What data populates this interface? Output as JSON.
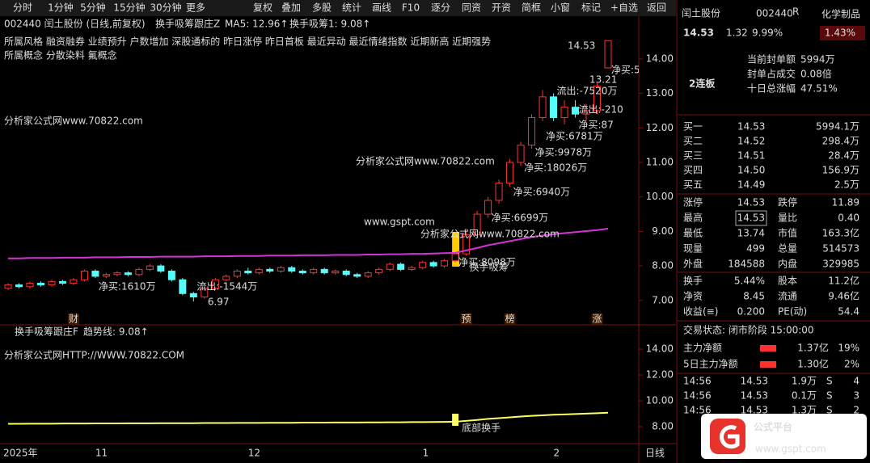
{
  "toolbar": [
    "分时",
    "1分钟",
    "5分钟",
    "15分钟",
    "30分钟",
    "更多",
    "复权",
    "叠加",
    "多股",
    "统计",
    "画线",
    "F10",
    "逐分",
    "同资",
    "开资",
    "简框",
    "小窗",
    "标记",
    "+自选",
    "返回"
  ],
  "chart_data": [
    {
      "type": "candlestick",
      "title": "002440 闰土股份 (日线,前复权)",
      "indicator": "换手吸筹跟庄Z",
      "legend": [
        "MA5: 12.96↑",
        "换手吸筹1: 9.08↑"
      ],
      "concepts": [
        "所属风格 融资融券 业绩预升 户数增加 深股通标的 昨日涨停 昨日首板 最近异动 最近情绪指数 近期新高 近期强势",
        "所属概念 分散染料 氟概念"
      ],
      "categories": [
        "2025年",
        null,
        null,
        null,
        null,
        null,
        null,
        null,
        "11",
        null,
        null,
        null,
        null,
        null,
        null,
        null,
        null,
        null,
        null,
        null,
        null,
        null,
        "12",
        null,
        null,
        null,
        null,
        null,
        null,
        null,
        null,
        null,
        null,
        null,
        null,
        null,
        null,
        null,
        "1",
        null,
        null,
        null,
        null,
        null,
        null,
        null,
        null,
        null,
        null,
        null,
        "2",
        null,
        null,
        null,
        null,
        null
      ],
      "period": "日线",
      "ohlc": [
        [
          7.35,
          7.5,
          7.3,
          7.45
        ],
        [
          7.45,
          7.5,
          7.35,
          7.4
        ],
        [
          7.4,
          7.55,
          7.35,
          7.5
        ],
        [
          7.5,
          7.55,
          7.4,
          7.45
        ],
        [
          7.45,
          7.6,
          7.4,
          7.55
        ],
        [
          7.55,
          7.6,
          7.45,
          7.5
        ],
        [
          7.5,
          7.65,
          7.45,
          7.6
        ],
        [
          7.6,
          7.9,
          7.55,
          7.85
        ],
        [
          7.85,
          7.9,
          7.65,
          7.7
        ],
        [
          7.7,
          7.8,
          7.65,
          7.75
        ],
        [
          7.75,
          7.85,
          7.7,
          7.8
        ],
        [
          7.8,
          7.85,
          7.7,
          7.75
        ],
        [
          7.75,
          7.95,
          7.7,
          7.9
        ],
        [
          7.9,
          8.05,
          7.85,
          8.0
        ],
        [
          8.0,
          8.05,
          7.8,
          7.85
        ],
        [
          7.85,
          7.9,
          7.55,
          7.6
        ],
        [
          7.6,
          7.65,
          7.15,
          7.2
        ],
        [
          7.2,
          7.25,
          6.97,
          7.1
        ],
        [
          7.1,
          7.4,
          7.05,
          7.35
        ],
        [
          7.35,
          7.65,
          7.3,
          7.6
        ],
        [
          7.6,
          7.75,
          7.55,
          7.7
        ],
        [
          7.7,
          7.9,
          7.65,
          7.85
        ],
        [
          7.85,
          7.95,
          7.75,
          7.8
        ],
        [
          7.8,
          7.95,
          7.75,
          7.9
        ],
        [
          7.9,
          7.95,
          7.8,
          7.85
        ],
        [
          7.85,
          8.0,
          7.8,
          7.95
        ],
        [
          7.95,
          8.0,
          7.8,
          7.85
        ],
        [
          7.85,
          7.9,
          7.75,
          7.8
        ],
        [
          7.8,
          7.95,
          7.75,
          7.9
        ],
        [
          7.9,
          7.95,
          7.75,
          7.8
        ],
        [
          7.8,
          7.9,
          7.75,
          7.85
        ],
        [
          7.85,
          7.9,
          7.7,
          7.75
        ],
        [
          7.75,
          7.8,
          7.65,
          7.7
        ],
        [
          7.7,
          7.85,
          7.65,
          7.8
        ],
        [
          7.8,
          7.95,
          7.75,
          7.9
        ],
        [
          7.9,
          8.1,
          7.85,
          8.05
        ],
        [
          8.05,
          8.1,
          7.85,
          7.9
        ],
        [
          7.9,
          8.0,
          7.85,
          7.95
        ],
        [
          7.95,
          8.15,
          7.9,
          8.1
        ],
        [
          8.1,
          8.15,
          7.95,
          8.0
        ],
        [
          8.0,
          8.2,
          7.95,
          8.15
        ],
        [
          8.15,
          8.4,
          8.1,
          8.35
        ],
        [
          8.35,
          9.0,
          8.3,
          8.9
        ],
        [
          8.9,
          9.6,
          8.85,
          9.5
        ],
        [
          9.5,
          10.0,
          9.4,
          9.9
        ],
        [
          9.9,
          10.5,
          9.8,
          10.4
        ],
        [
          10.4,
          11.1,
          10.3,
          11.0
        ],
        [
          11.0,
          11.6,
          10.9,
          11.5
        ],
        [
          11.5,
          12.4,
          11.4,
          12.3
        ],
        [
          12.3,
          13.1,
          12.2,
          12.9
        ],
        [
          12.9,
          13.0,
          12.2,
          12.3
        ],
        [
          12.3,
          12.8,
          12.1,
          12.6
        ],
        [
          12.6,
          12.8,
          12.3,
          12.4
        ],
        [
          12.4,
          12.7,
          12.2,
          12.5
        ],
        [
          12.5,
          13.3,
          12.4,
          13.21
        ],
        [
          13.74,
          14.53,
          13.74,
          14.53
        ]
      ],
      "lines": [
        {
          "color": "#d633d6",
          "values": [
            8.22,
            8.22,
            8.23,
            8.23,
            8.23,
            8.24,
            8.24,
            8.24,
            8.25,
            8.25,
            8.25,
            8.26,
            8.26,
            8.26,
            8.27,
            8.27,
            8.27,
            8.27,
            8.28,
            8.28,
            8.28,
            8.29,
            8.29,
            8.29,
            8.3,
            8.3,
            8.3,
            8.31,
            8.31,
            8.31,
            8.32,
            8.32,
            8.32,
            8.33,
            8.33,
            8.34,
            8.34,
            8.35,
            8.35,
            8.36,
            8.37,
            8.38,
            8.45,
            8.52,
            8.6,
            8.66,
            8.72,
            8.78,
            8.84,
            8.88,
            8.92,
            8.95,
            8.98,
            9.01,
            9.04,
            9.08
          ]
        }
      ],
      "up_color": "#ff3232",
      "down_color": "#54fcfc",
      "ylim": [
        6.34,
        14.77
      ],
      "yticks": [
        {
          "value": 14,
          "label": "14.00"
        },
        {
          "value": 13,
          "label": "13.00"
        },
        {
          "value": 12,
          "label": "12.00"
        },
        {
          "value": 11,
          "label": "11.00"
        },
        {
          "value": 10,
          "label": "10.00"
        },
        {
          "value": 9,
          "label": "9.00"
        },
        {
          "value": 8,
          "label": "8.00"
        },
        {
          "value": 7,
          "label": "7.00"
        }
      ],
      "annotations": [
        "净买:1610万",
        "流出:-1544万",
        "6.97",
        "净买:6699万",
        "净买:6940万",
        "净买:18026万",
        "净买:9978万",
        "净买:6781万",
        "净买:87",
        "流出:-7520万",
        "流出:-210",
        "13.21",
        "14.53",
        "净买:5",
        "换手吸筹",
        "净买:8098万"
      ],
      "markers": [
        "财",
        "预",
        "榜",
        "涨"
      ]
    },
    {
      "type": "line",
      "indicator": "换手吸筹跟庄F",
      "legend": "趋势线: 9.08↑",
      "color": "#ffff66",
      "values": [
        8.22,
        8.22,
        8.23,
        8.23,
        8.23,
        8.24,
        8.24,
        8.24,
        8.25,
        8.25,
        8.25,
        8.26,
        8.26,
        8.26,
        8.27,
        8.27,
        8.27,
        8.27,
        8.28,
        8.28,
        8.28,
        8.29,
        8.29,
        8.29,
        8.3,
        8.3,
        8.3,
        8.31,
        8.31,
        8.31,
        8.32,
        8.32,
        8.32,
        8.33,
        8.33,
        8.34,
        8.34,
        8.35,
        8.35,
        8.36,
        8.37,
        8.38,
        8.45,
        8.52,
        8.6,
        8.66,
        8.72,
        8.78,
        8.84,
        8.88,
        8.92,
        8.95,
        8.98,
        9.01,
        9.04,
        9.08
      ],
      "ylim": [
        6.75,
        15.38
      ],
      "yticks": [
        {
          "value": 14,
          "label": "14.00"
        },
        {
          "value": 12,
          "label": "12.00"
        },
        {
          "value": 10,
          "label": "10.00"
        },
        {
          "value": 8,
          "label": "8.00"
        }
      ],
      "annotation": "底部换手"
    }
  ],
  "watermarks": [
    "分析家公式网www.70822.com",
    "分析家公式网www.70822.com",
    "分析家公式网www.70822.com",
    "www.gspt.com",
    "分析家公式网HTTP://WWW.70822.COM"
  ],
  "quote": {
    "name": "闰土股份",
    "code": "002440",
    "badge": "R",
    "sector": "化学制品",
    "sector_change": "1.43%",
    "price": "14.53",
    "change": "1.32",
    "pct": "9.99%",
    "boards": "2连板",
    "limit_info": [
      [
        "当前封单额",
        "5994万"
      ],
      [
        "封单占成交",
        "0.08倍"
      ],
      [
        "十日总涨幅",
        "47.51%"
      ]
    ],
    "bids": [
      [
        "买一",
        "14.53",
        "5994.1万"
      ],
      [
        "买二",
        "14.52",
        "298.4万"
      ],
      [
        "买三",
        "14.51",
        "28.4万"
      ],
      [
        "买四",
        "14.50",
        "156.9万"
      ],
      [
        "买五",
        "14.49",
        "2.5万"
      ]
    ],
    "stats": [
      [
        "涨停",
        "14.53",
        "跌停",
        "11.89"
      ],
      [
        "最高",
        "14.53",
        "量比",
        "0.40"
      ],
      [
        "最低",
        "13.74",
        "市值",
        "163.3亿"
      ],
      [
        "现量",
        "499",
        "总量",
        "514573"
      ],
      [
        "外盘",
        "184588",
        "内盘",
        "329985"
      ]
    ],
    "stats2": [
      [
        "换手",
        "5.44%",
        "股本",
        "11.2亿"
      ],
      [
        "净资",
        "8.45",
        "流通",
        "9.46亿"
      ],
      [
        "收益(≡)",
        "0.200",
        "PE(动)",
        "54.4"
      ]
    ],
    "status": "交易状态: 闭市阶段 15:00:00",
    "flows": [
      [
        "主力净额",
        "1.37亿",
        "19%"
      ],
      [
        "5日主力净额",
        "1.30亿",
        "2%"
      ]
    ],
    "ticks": [
      [
        "14:56",
        "14.53",
        "1.9万",
        "S",
        "4"
      ],
      [
        "14:56",
        "14.53",
        "0.1万",
        "S",
        "3"
      ],
      [
        "14:56",
        "14.53",
        "1.3万",
        "S",
        "2"
      ]
    ]
  },
  "logo": {
    "title": "公式平台",
    "url": "www.gspt.com"
  }
}
